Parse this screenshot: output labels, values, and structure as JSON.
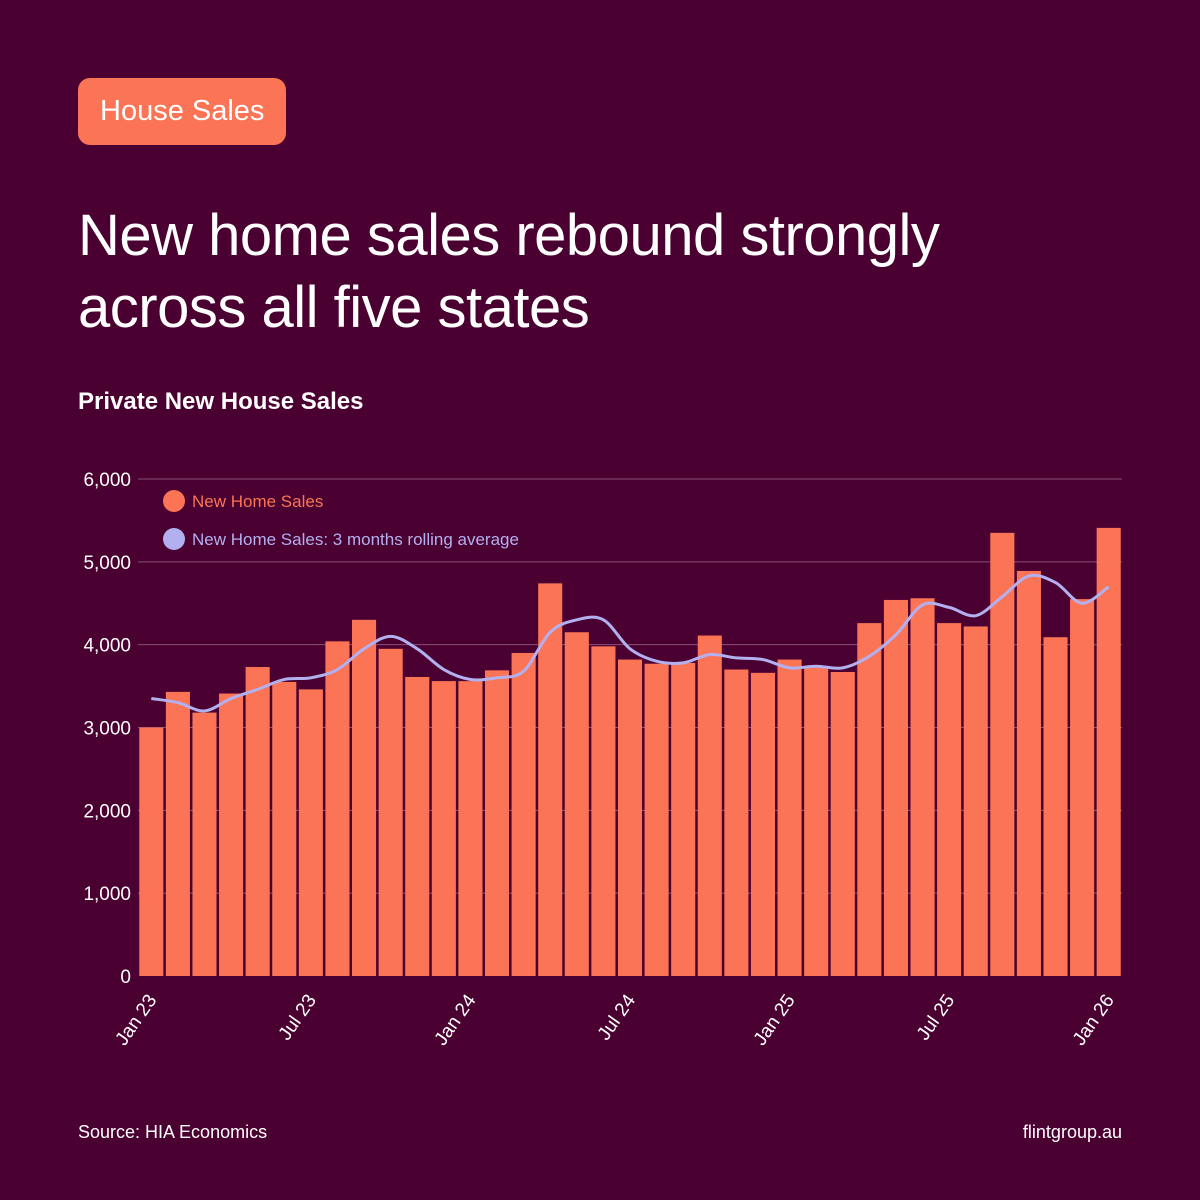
{
  "tag": {
    "label": "House Sales"
  },
  "header": {
    "title_line1": "New home sales rebound strongly",
    "title_line2": "across all five states",
    "subtitle": "Private New House Sales"
  },
  "footer": {
    "source": "Source: HIA Economics",
    "site": "flintgroup.au"
  },
  "colors": {
    "background": "#4a0030",
    "bar": "#fb7455",
    "line": "#b3b0f0",
    "grid": "#8a4f77",
    "text": "#ffffff"
  },
  "chart_data": {
    "type": "bar",
    "title": "Private New House Sales",
    "xlabel": "",
    "ylabel": "",
    "ylim": [
      0,
      6000
    ],
    "yticks": [
      0,
      1000,
      2000,
      3000,
      4000,
      5000,
      6000
    ],
    "ytick_labels": [
      "0",
      "1,000",
      "2,000",
      "3,000",
      "4,000",
      "5,000",
      "6,000"
    ],
    "xtick_labels": [
      {
        "index": 0,
        "label": "Jan 23"
      },
      {
        "index": 6,
        "label": "Jul 23"
      },
      {
        "index": 12,
        "label": "Jan 24"
      },
      {
        "index": 18,
        "label": "Jul 24"
      },
      {
        "index": 24,
        "label": "Jan 25"
      },
      {
        "index": 30,
        "label": "Jul 25"
      },
      {
        "index": 36,
        "label": "Jan 26"
      }
    ],
    "legend": [
      "New Home Sales",
      "New Home Sales: 3 months rolling average"
    ],
    "legend_position": "top-left",
    "grid": true,
    "series": [
      {
        "name": "New Home Sales",
        "type": "bar",
        "values": [
          3000,
          3430,
          3180,
          3410,
          3730,
          3550,
          3460,
          4040,
          4300,
          3950,
          3610,
          3560,
          3560,
          3690,
          3900,
          4740,
          4150,
          3980,
          3820,
          3770,
          3780,
          4110,
          3700,
          3660,
          3820,
          3740,
          3670,
          4260,
          4540,
          4560,
          4260,
          4220,
          5350,
          4890,
          4090,
          4550,
          5410
        ]
      },
      {
        "name": "New Home Sales: 3 months rolling average",
        "type": "line",
        "values": [
          3350,
          3300,
          3200,
          3350,
          3460,
          3580,
          3600,
          3700,
          3950,
          4100,
          3950,
          3700,
          3580,
          3600,
          3680,
          4150,
          4300,
          4300,
          3950,
          3800,
          3780,
          3880,
          3840,
          3820,
          3720,
          3740,
          3720,
          3860,
          4120,
          4480,
          4450,
          4350,
          4580,
          4830,
          4750,
          4500,
          4700
        ]
      }
    ]
  }
}
